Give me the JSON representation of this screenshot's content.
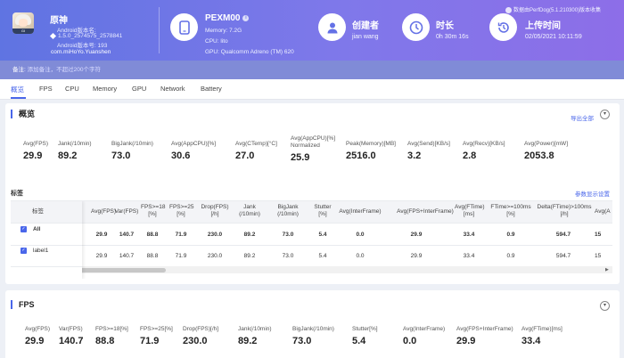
{
  "app": {
    "name": "原神",
    "icon_label": "GI",
    "android_version_label": "Android版本名:",
    "version_line": "1.5.0_2574575_2578841",
    "version_code_line": "Android版本号: 193",
    "package": "com.miHoYo.Yuanshen"
  },
  "device": {
    "name": "PEXM00",
    "memory": "Memory: 7.2G",
    "cpu": "CPU: lito",
    "gpu": "GPU: Qualcomm Adreno (TM) 620"
  },
  "creator": {
    "title": "创建者",
    "value": "jian wang"
  },
  "duration": {
    "title": "时长",
    "value": "0h 30m 16s"
  },
  "upload": {
    "title": "上传时间",
    "value": "02/05/2021 10:11:59"
  },
  "perfdog_version": "数据由PerfDog(5.1.210300)版本收集",
  "note": {
    "label": "备注:",
    "placeholder": "添加备注，不超过200个字符"
  },
  "tabs": [
    "概览",
    "FPS",
    "CPU",
    "Memory",
    "GPU",
    "Network",
    "Battery"
  ],
  "overview": {
    "title": "概览",
    "export_label": "导出全部",
    "metrics": [
      {
        "label": "Avg(FPS)",
        "value": "29.9"
      },
      {
        "label": "Jank(/10min)",
        "value": "89.2"
      },
      {
        "label": "BigJank(/10min)",
        "value": "73.0"
      },
      {
        "label": "Avg(AppCPU)[%]",
        "value": "30.6"
      },
      {
        "label": "Avg(CTemp)[°C]",
        "value": "27.0"
      },
      {
        "label": "Avg(AppCPU)[%]\nNormalized",
        "value": "25.9"
      },
      {
        "label": "Peak(Memory)[MB]",
        "value": "2516.0"
      },
      {
        "label": "Avg(Send)[KB/s]",
        "value": "3.2"
      },
      {
        "label": "Avg(Recv)[KB/s]",
        "value": "2.8"
      },
      {
        "label": "Avg(Power)[mW]",
        "value": "2053.8"
      }
    ],
    "tags_title": "标签",
    "param_settings": "参数显示设置",
    "table": {
      "label_header": "标签",
      "headers": [
        "Avg(FPS)",
        "Var(FPS)",
        "FPS>=18\n[%]",
        "FPS>=25\n[%]",
        "Drop(FPS)\n[/h]",
        "Jank\n(/10min)",
        "BigJank\n(/10min)",
        "Stutter\n[%]",
        "Avg(InterFrame)",
        "Avg(FPS+InterFrame)",
        "Avg(FTime)\n[ms]",
        "FTime>=100ms\n[%]",
        "Delta(FTime)>100ms\n[/h]",
        "Avg(A"
      ],
      "rows": [
        {
          "label": "All",
          "values": [
            "29.9",
            "140.7",
            "88.8",
            "71.9",
            "230.0",
            "89.2",
            "73.0",
            "5.4",
            "0.0",
            "29.9",
            "33.4",
            "0.9",
            "594.7",
            "15"
          ]
        },
        {
          "label": "label1",
          "values": [
            "29.9",
            "140.7",
            "88.8",
            "71.9",
            "230.0",
            "89.2",
            "73.0",
            "5.4",
            "0.0",
            "29.9",
            "33.4",
            "0.9",
            "594.7",
            "15"
          ]
        }
      ]
    }
  },
  "fps_section": {
    "title": "FPS",
    "metrics": [
      {
        "label": "Avg(FPS)",
        "value": "29.9"
      },
      {
        "label": "Var(FPS)",
        "value": "140.7"
      },
      {
        "label": "FPS>=18[%]",
        "value": "88.8"
      },
      {
        "label": "FPS>=25[%]",
        "value": "71.9"
      },
      {
        "label": "Drop(FPS)[/h]",
        "value": "230.0"
      },
      {
        "label": "Jank(/10min)",
        "value": "89.2"
      },
      {
        "label": "BigJank(/10min)",
        "value": "73.0"
      },
      {
        "label": "Stutter[%]",
        "value": "5.4"
      },
      {
        "label": "Avg(InterFrame)",
        "value": "0.0"
      },
      {
        "label": "Avg(FPS+InterFrame)",
        "value": "29.9"
      },
      {
        "label": "Avg(FTime)[ms]",
        "value": "33.4"
      }
    ]
  },
  "colors": {
    "accent": "#4966ea",
    "header_start": "#5f74e2",
    "header_end": "#8d6ee8"
  }
}
